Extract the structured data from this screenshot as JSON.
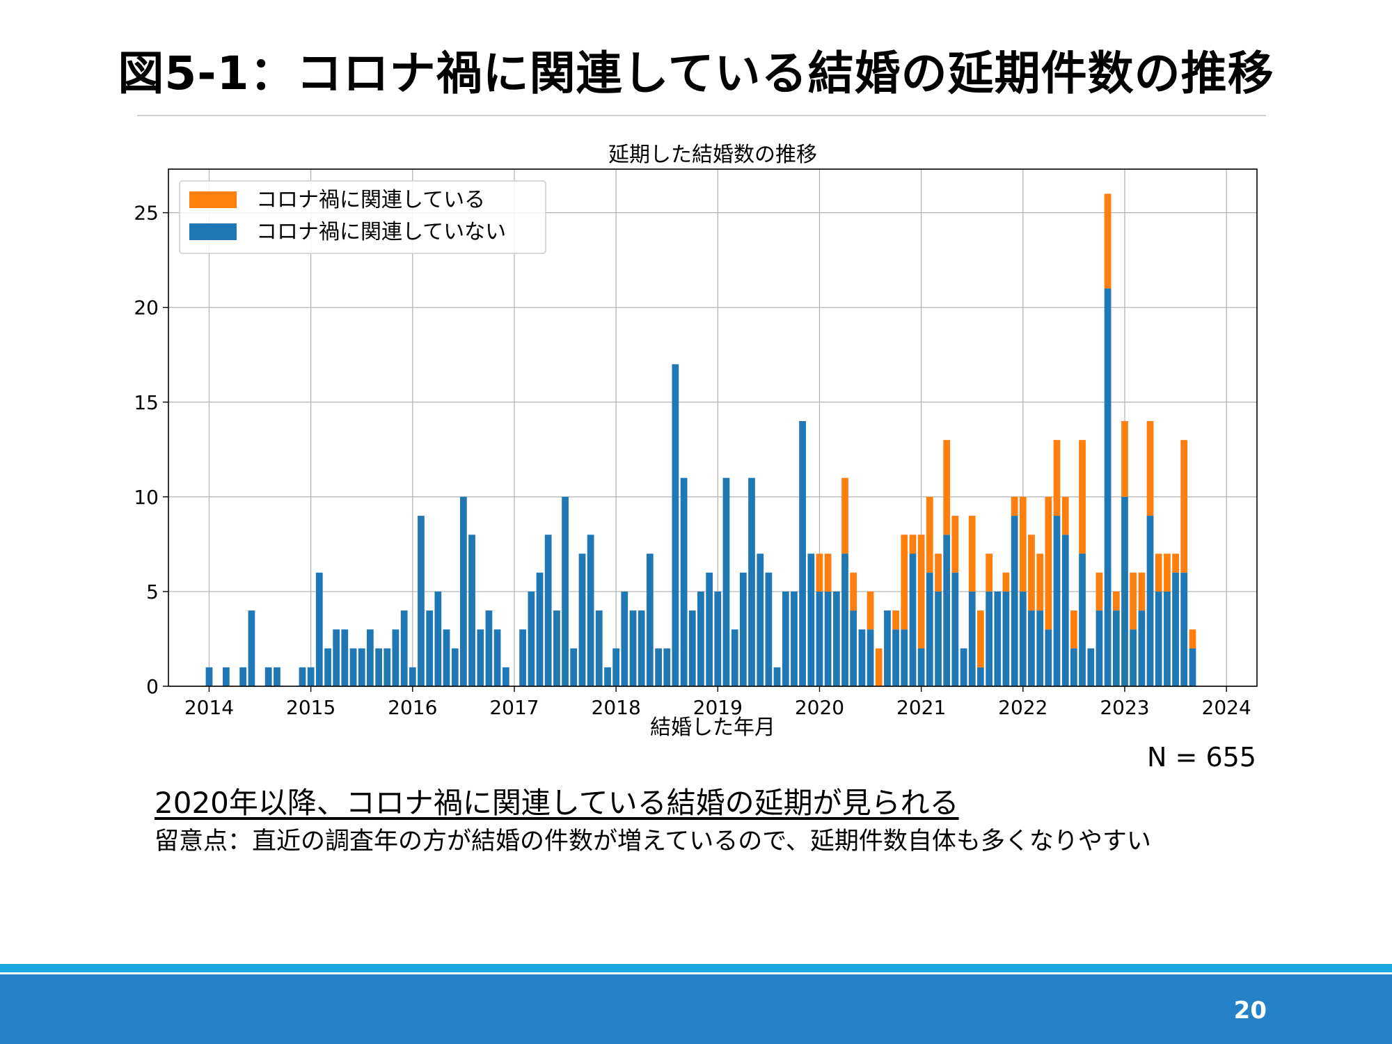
{
  "slide": {
    "title": "図5-1：コロナ禍に関連している結婚の延期件数の推移",
    "sample_size": "N = 655",
    "takeaway": "2020年以降、コロナ禍に関連している結婚の延期が見られる",
    "note": "留意点：直近の調査年の方が結婚の件数が増えているので、延期件数自体も多くなりやすい",
    "page_number": "20"
  },
  "colors": {
    "related": "#ff7f0e",
    "not_related": "#1f77b4",
    "footer_bar": "#2582c8",
    "footer_stripe": "#19a9e0"
  },
  "chart_data": {
    "type": "bar",
    "stacked": true,
    "title": "延期した結婚数の推移",
    "xlabel": "結婚した年月",
    "ylabel": "",
    "xlim": [
      2013.6,
      2024.3
    ],
    "ylim": [
      0,
      27.3
    ],
    "xticks": [
      2014,
      2015,
      2016,
      2017,
      2018,
      2019,
      2020,
      2021,
      2022,
      2023,
      2024
    ],
    "yticks": [
      0,
      5,
      10,
      15,
      20,
      25
    ],
    "grid": true,
    "legend": {
      "position": "top-left",
      "items": [
        "コロナ禍に関連している",
        "コロナ禍に関連していない"
      ]
    },
    "x_unit": "year (fractional, monthly bars)",
    "x": [
      2014.0,
      2014.167,
      2014.333,
      2014.417,
      2014.583,
      2014.667,
      2014.917,
      2015.0,
      2015.083,
      2015.167,
      2015.25,
      2015.333,
      2015.417,
      2015.5,
      2015.583,
      2015.667,
      2015.75,
      2015.833,
      2015.917,
      2016.0,
      2016.083,
      2016.167,
      2016.25,
      2016.333,
      2016.417,
      2016.5,
      2016.583,
      2016.667,
      2016.75,
      2016.833,
      2016.917,
      2017.083,
      2017.167,
      2017.25,
      2017.333,
      2017.417,
      2017.5,
      2017.583,
      2017.667,
      2017.75,
      2017.833,
      2017.917,
      2018.0,
      2018.083,
      2018.167,
      2018.25,
      2018.333,
      2018.417,
      2018.5,
      2018.583,
      2018.667,
      2018.75,
      2018.833,
      2018.917,
      2019.0,
      2019.083,
      2019.167,
      2019.25,
      2019.333,
      2019.417,
      2019.5,
      2019.583,
      2019.667,
      2019.75,
      2019.833,
      2019.917,
      2020.0,
      2020.083,
      2020.167,
      2020.25,
      2020.333,
      2020.417,
      2020.5,
      2020.583,
      2020.667,
      2020.75,
      2020.833,
      2020.917,
      2021.0,
      2021.083,
      2021.167,
      2021.25,
      2021.333,
      2021.417,
      2021.5,
      2021.583,
      2021.667,
      2021.75,
      2021.833,
      2021.917,
      2022.0,
      2022.083,
      2022.167,
      2022.25,
      2022.333,
      2022.417,
      2022.5,
      2022.583,
      2022.667,
      2022.75,
      2022.833,
      2022.917,
      2023.0,
      2023.083,
      2023.167,
      2023.25,
      2023.333,
      2023.417,
      2023.5,
      2023.583,
      2023.667
    ],
    "series": [
      {
        "name": "コロナ禍に関連していない",
        "values": [
          1,
          1,
          1,
          4,
          1,
          1,
          1,
          1,
          6,
          2,
          3,
          3,
          2,
          2,
          3,
          2,
          2,
          3,
          4,
          1,
          9,
          4,
          5,
          3,
          2,
          10,
          8,
          3,
          4,
          3,
          1,
          3,
          5,
          6,
          8,
          4,
          10,
          2,
          7,
          8,
          4,
          1,
          2,
          5,
          4,
          4,
          7,
          2,
          2,
          17,
          11,
          4,
          5,
          6,
          5,
          11,
          3,
          6,
          11,
          7,
          6,
          1,
          5,
          5,
          14,
          7,
          5,
          5,
          5,
          7,
          4,
          3,
          3,
          0,
          4,
          3,
          3,
          7,
          2,
          6,
          5,
          8,
          6,
          2,
          5,
          1,
          5,
          5,
          5,
          9,
          5,
          4,
          4,
          3,
          9,
          8,
          2,
          7,
          2,
          4,
          21,
          4,
          10,
          3,
          4,
          9,
          5,
          5,
          6,
          6,
          2
        ]
      },
      {
        "name": "コロナ禍に関連している",
        "values": [
          0,
          0,
          0,
          0,
          0,
          0,
          0,
          0,
          0,
          0,
          0,
          0,
          0,
          0,
          0,
          0,
          0,
          0,
          0,
          0,
          0,
          0,
          0,
          0,
          0,
          0,
          0,
          0,
          0,
          0,
          0,
          0,
          0,
          0,
          0,
          0,
          0,
          0,
          0,
          0,
          0,
          0,
          0,
          0,
          0,
          0,
          0,
          0,
          0,
          0,
          0,
          0,
          0,
          0,
          0,
          0,
          0,
          0,
          0,
          0,
          0,
          0,
          0,
          0,
          0,
          0,
          2,
          2,
          0,
          4,
          2,
          0,
          2,
          2,
          0,
          1,
          5,
          1,
          6,
          4,
          2,
          5,
          3,
          0,
          4,
          3,
          2,
          0,
          1,
          1,
          5,
          4,
          3,
          7,
          4,
          2,
          2,
          6,
          0,
          2,
          5,
          1,
          4,
          3,
          2,
          5,
          2,
          2,
          1,
          7,
          1
        ]
      }
    ]
  }
}
